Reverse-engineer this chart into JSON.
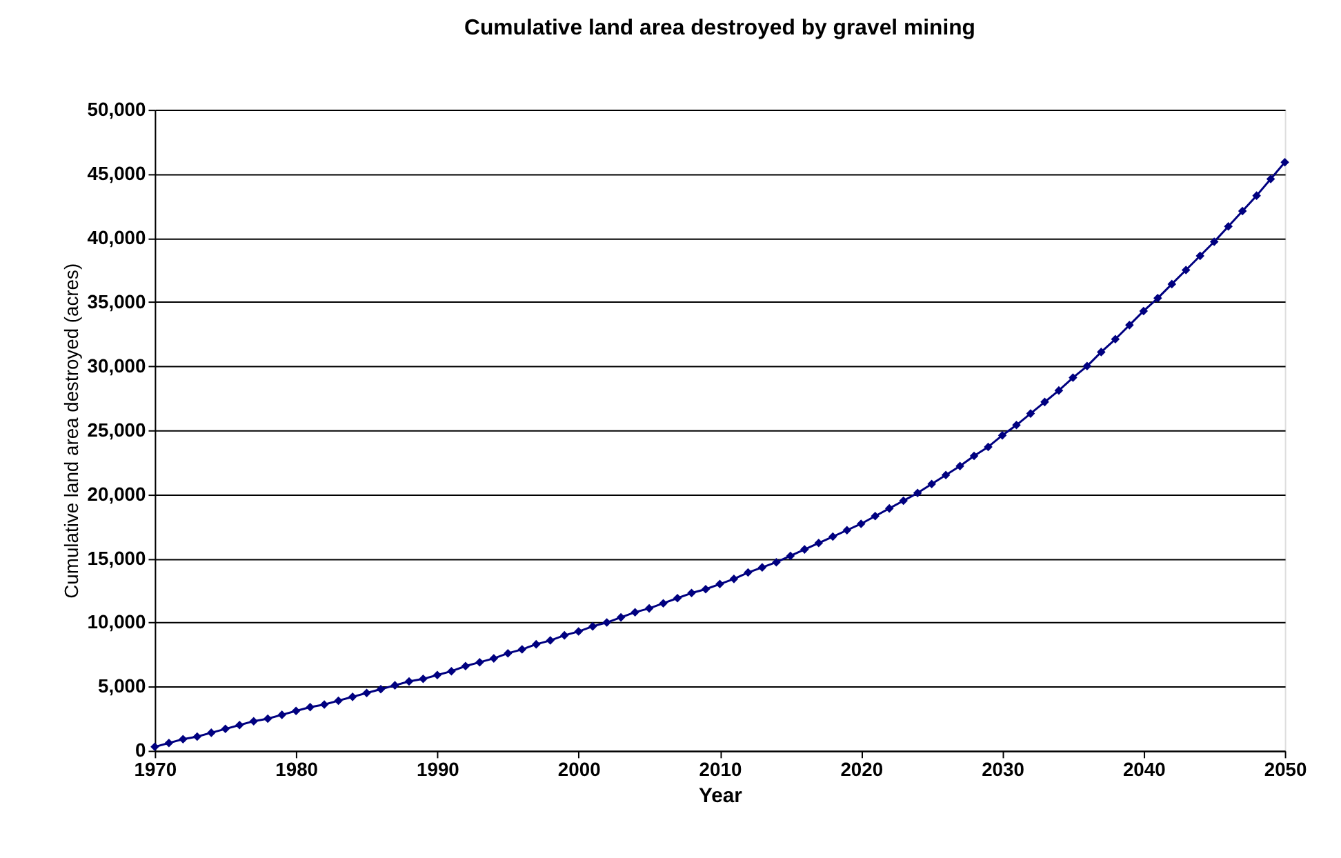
{
  "chart_data": {
    "type": "line",
    "title": "Cumulative land area destroyed by gravel mining",
    "xlabel": "Year",
    "ylabel": "Cumulative land area destroyed (acres)",
    "x": [
      1970,
      1971,
      1972,
      1973,
      1974,
      1975,
      1976,
      1977,
      1978,
      1979,
      1980,
      1981,
      1982,
      1983,
      1984,
      1985,
      1986,
      1987,
      1988,
      1989,
      1990,
      1991,
      1992,
      1993,
      1994,
      1995,
      1996,
      1997,
      1998,
      1999,
      2000,
      2001,
      2002,
      2003,
      2004,
      2005,
      2006,
      2007,
      2008,
      2009,
      2010,
      2011,
      2012,
      2013,
      2014,
      2015,
      2016,
      2017,
      2018,
      2019,
      2020,
      2021,
      2022,
      2023,
      2024,
      2025,
      2026,
      2027,
      2028,
      2029,
      2030,
      2031,
      2032,
      2033,
      2034,
      2035,
      2036,
      2037,
      2038,
      2039,
      2040,
      2041,
      2042,
      2043,
      2044,
      2045,
      2046,
      2047,
      2048,
      2049,
      2050
    ],
    "series": [
      {
        "color": "#000080",
        "values": [
          300,
          600,
          900,
          1100,
          1400,
          1700,
          2000,
          2300,
          2500,
          2800,
          3100,
          3400,
          3600,
          3900,
          4200,
          4500,
          4800,
          5100,
          5400,
          5600,
          5900,
          6200,
          6600,
          6900,
          7200,
          7600,
          7900,
          8300,
          8600,
          9000,
          9300,
          9700,
          10000,
          10400,
          10800,
          11100,
          11500,
          11900,
          12300,
          12600,
          13000,
          13400,
          13900,
          14300,
          14700,
          15200,
          15700,
          16200,
          16700,
          17200,
          17700,
          18300,
          18900,
          19500,
          20100,
          20800,
          21500,
          22200,
          23000,
          23700,
          24600,
          25400,
          26300,
          27200,
          28100,
          29100,
          30000,
          31100,
          32100,
          33200,
          34300,
          35300,
          36400,
          37500,
          38600,
          39700,
          40900,
          42100,
          43300,
          44600,
          45900
        ]
      }
    ],
    "xlim": [
      1970,
      2050
    ],
    "xticks": [
      1970,
      1980,
      1990,
      2000,
      2010,
      2020,
      2030,
      2040,
      2050
    ],
    "ylim": [
      0,
      50000
    ],
    "yticks": [
      0,
      {
        "value": 5000,
        "label": "5,000"
      },
      {
        "value": 10000,
        "label": "10,000"
      },
      {
        "value": 15000,
        "label": "15,000"
      },
      {
        "value": 20000,
        "label": "20,000"
      },
      {
        "value": 25000,
        "label": "25,000"
      },
      {
        "value": 30000,
        "label": "30,000"
      },
      {
        "value": 35000,
        "label": "35,000"
      },
      {
        "value": 40000,
        "label": "40,000"
      },
      {
        "value": 45000,
        "label": "45,000"
      },
      {
        "value": 50000,
        "label": "50,000"
      }
    ],
    "grid": "y",
    "marker": "diamond",
    "line_style": "solid"
  }
}
